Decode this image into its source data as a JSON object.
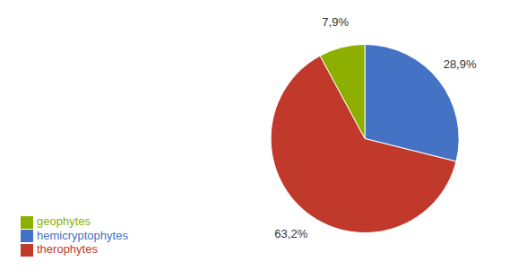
{
  "chart_data": {
    "type": "pie",
    "categories": [
      "hemicryptophytes",
      "therophytes",
      "geophytes"
    ],
    "values": [
      28.9,
      63.2,
      7.9
    ],
    "value_labels": [
      "28,9%",
      "63,2%",
      "7,9%"
    ],
    "colors": [
      "#4472C4",
      "#C0392B",
      "#8DB000"
    ],
    "data_labels": true,
    "legend": "lower left"
  }
}
